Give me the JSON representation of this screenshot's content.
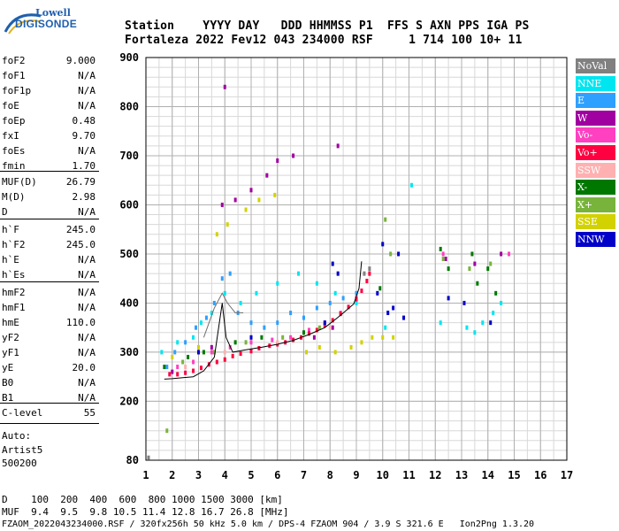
{
  "logo": {
    "line1": "Lowell",
    "line2": "DIGISONDE"
  },
  "header": {
    "line1": "Station    YYYY DAY   DDD HHMMSS P1  FFS S AXN PPS IGA PS",
    "line2": "Fortaleza 2022 Fev12 043 234000 RSF     1 714 100 10+ 11"
  },
  "params": [
    {
      "k": "foF2",
      "v": "9.000"
    },
    {
      "k": "foF1",
      "v": "N/A"
    },
    {
      "k": "foF1p",
      "v": "N/A"
    },
    {
      "k": "foE",
      "v": "N/A"
    },
    {
      "k": "foEp",
      "v": "0.48"
    },
    {
      "k": "fxI",
      "v": "9.70"
    },
    {
      "k": "foEs",
      "v": "N/A"
    },
    {
      "k": "fmin",
      "v": "1.70"
    },
    {
      "k": "MUF(D)",
      "v": "26.79"
    },
    {
      "k": "M(D)",
      "v": "2.98"
    },
    {
      "k": "D",
      "v": "N/A"
    },
    {
      "k": "h`F",
      "v": "245.0"
    },
    {
      "k": "h`F2",
      "v": "245.0"
    },
    {
      "k": "h`E",
      "v": "N/A"
    },
    {
      "k": "h`Es",
      "v": "N/A"
    },
    {
      "k": "hmF2",
      "v": "N/A"
    },
    {
      "k": "hmF1",
      "v": "N/A"
    },
    {
      "k": "hmE",
      "v": "110.0"
    },
    {
      "k": "yF2",
      "v": "N/A"
    },
    {
      "k": "yF1",
      "v": "N/A"
    },
    {
      "k": "yE",
      "v": "20.0"
    },
    {
      "k": "B0",
      "v": "N/A"
    },
    {
      "k": "B1",
      "v": "N/A"
    },
    {
      "k": "C-level",
      "v": "55"
    }
  ],
  "auto": {
    "line1": "Auto:",
    "line2": "Artist5",
    "line3": "500200"
  },
  "legend": [
    {
      "label": "NoVal",
      "color": "#808080"
    },
    {
      "label": "NNE",
      "color": "#00e6f0"
    },
    {
      "label": "E",
      "color": "#2ea0ff"
    },
    {
      "label": "W",
      "color": "#a000a0"
    },
    {
      "label": "Vo-",
      "color": "#ff40c0"
    },
    {
      "label": "Vo+",
      "color": "#ff0040"
    },
    {
      "label": "SSW",
      "color": "#ffb0b0"
    },
    {
      "label": "X-",
      "color": "#007800"
    },
    {
      "label": "X+",
      "color": "#78b43c"
    },
    {
      "label": "SSE",
      "color": "#d2d200"
    },
    {
      "label": "NNW",
      "color": "#0000c8"
    }
  ],
  "footer": {
    "line1": "D    100  200  400  600  800 1000 1500 3000 [km]",
    "line2": "MUF  9.4  9.5  9.8 10.5 11.4 12.8 16.7 26.8 [MHz]",
    "line3": "FZAOM_2022043234000.RSF / 320fx256h 50 kHz 5.0 km / DPS-4 FZAOM 904 / 3.9 S 321.6 E   Ion2Png 1.3.20"
  },
  "chart_data": {
    "type": "scatter",
    "xlim": [
      1,
      17
    ],
    "ylim": [
      80,
      900
    ],
    "x_ticks": [
      1,
      2,
      3,
      4,
      5,
      6,
      7,
      8,
      9,
      10,
      11,
      12,
      13,
      14,
      15,
      16,
      17
    ],
    "y_ticks": [
      80,
      200,
      300,
      400,
      500,
      600,
      700,
      800,
      900
    ],
    "grid": true,
    "series": [
      {
        "name": "NoVal",
        "color": "#808080",
        "points": [
          [
            1.1,
            85
          ],
          [
            9.3,
            460
          ],
          [
            9.5,
            470
          ]
        ]
      },
      {
        "name": "NNE",
        "color": "#00e6f0",
        "points": [
          [
            1.6,
            300
          ],
          [
            2.2,
            320
          ],
          [
            2.8,
            330
          ],
          [
            3.1,
            360
          ],
          [
            3.5,
            380
          ],
          [
            4.0,
            420
          ],
          [
            4.6,
            400
          ],
          [
            5.2,
            420
          ],
          [
            6.0,
            440
          ],
          [
            6.8,
            460
          ],
          [
            7.5,
            440
          ],
          [
            8.2,
            420
          ],
          [
            9.0,
            400
          ],
          [
            10.1,
            350
          ],
          [
            11.1,
            640
          ],
          [
            12.2,
            360
          ],
          [
            13.2,
            350
          ],
          [
            13.5,
            340
          ],
          [
            13.8,
            360
          ],
          [
            14.2,
            380
          ],
          [
            14.5,
            400
          ]
        ]
      },
      {
        "name": "E",
        "color": "#2ea0ff",
        "points": [
          [
            1.8,
            270
          ],
          [
            2.1,
            300
          ],
          [
            2.5,
            320
          ],
          [
            2.9,
            350
          ],
          [
            3.3,
            370
          ],
          [
            3.6,
            400
          ],
          [
            3.9,
            450
          ],
          [
            4.2,
            460
          ],
          [
            4.5,
            380
          ],
          [
            5.0,
            360
          ],
          [
            5.5,
            350
          ],
          [
            6.0,
            360
          ],
          [
            6.5,
            380
          ],
          [
            7.0,
            370
          ],
          [
            7.5,
            390
          ],
          [
            8.0,
            400
          ],
          [
            8.5,
            410
          ],
          [
            9.0,
            420
          ]
        ]
      },
      {
        "name": "W",
        "color": "#a000a0",
        "points": [
          [
            2.0,
            260
          ],
          [
            3.0,
            300
          ],
          [
            3.5,
            310
          ],
          [
            3.9,
            600
          ],
          [
            4.0,
            840
          ],
          [
            4.4,
            610
          ],
          [
            5.0,
            630
          ],
          [
            5.6,
            660
          ],
          [
            6.0,
            690
          ],
          [
            6.6,
            700
          ],
          [
            7.4,
            330
          ],
          [
            8.1,
            350
          ],
          [
            8.3,
            720
          ],
          [
            12.4,
            490
          ],
          [
            13.5,
            480
          ],
          [
            14.5,
            500
          ]
        ]
      },
      {
        "name": "Vo-",
        "color": "#ff40c0",
        "points": [
          [
            2.2,
            270
          ],
          [
            2.8,
            280
          ],
          [
            3.5,
            300
          ],
          [
            4.2,
            310
          ],
          [
            5.0,
            320
          ],
          [
            5.8,
            325
          ],
          [
            6.5,
            330
          ],
          [
            7.2,
            345
          ],
          [
            7.8,
            360
          ],
          [
            8.4,
            380
          ],
          [
            9.0,
            410
          ],
          [
            12.3,
            500
          ],
          [
            14.8,
            500
          ]
        ]
      },
      {
        "name": "Vo+",
        "color": "#ff0040",
        "points": [
          [
            1.9,
            255
          ],
          [
            2.2,
            255
          ],
          [
            2.5,
            258
          ],
          [
            2.8,
            262
          ],
          [
            3.1,
            268
          ],
          [
            3.4,
            275
          ],
          [
            3.7,
            280
          ],
          [
            4.0,
            285
          ],
          [
            4.3,
            292
          ],
          [
            4.6,
            297
          ],
          [
            5.0,
            302
          ],
          [
            5.3,
            308
          ],
          [
            5.7,
            313
          ],
          [
            6.0,
            316
          ],
          [
            6.3,
            320
          ],
          [
            6.6,
            325
          ],
          [
            6.9,
            330
          ],
          [
            7.2,
            338
          ],
          [
            7.5,
            345
          ],
          [
            7.8,
            355
          ],
          [
            8.1,
            365
          ],
          [
            8.4,
            378
          ],
          [
            8.7,
            392
          ],
          [
            9.0,
            408
          ],
          [
            9.2,
            425
          ],
          [
            9.4,
            445
          ],
          [
            9.5,
            460
          ]
        ]
      },
      {
        "name": "SSW",
        "color": "#ffb0b0",
        "points": [
          [
            2.5,
            270
          ],
          [
            4.0,
            300
          ],
          [
            6.0,
            320
          ],
          [
            8.0,
            350
          ]
        ]
      },
      {
        "name": "X-",
        "color": "#007800",
        "points": [
          [
            1.7,
            270
          ],
          [
            2.6,
            290
          ],
          [
            3.2,
            300
          ],
          [
            4.4,
            320
          ],
          [
            5.4,
            330
          ],
          [
            7.0,
            340
          ],
          [
            9.9,
            430
          ],
          [
            12.2,
            510
          ],
          [
            12.5,
            470
          ],
          [
            13.4,
            500
          ],
          [
            13.6,
            440
          ],
          [
            14.0,
            470
          ],
          [
            14.3,
            420
          ]
        ]
      },
      {
        "name": "X+",
        "color": "#78b43c",
        "points": [
          [
            1.8,
            140
          ],
          [
            2.4,
            280
          ],
          [
            3.6,
            300
          ],
          [
            4.8,
            320
          ],
          [
            6.2,
            330
          ],
          [
            7.6,
            350
          ],
          [
            10.1,
            570
          ],
          [
            10.3,
            500
          ],
          [
            12.3,
            490
          ],
          [
            13.3,
            470
          ],
          [
            14.1,
            480
          ]
        ]
      },
      {
        "name": "SSE",
        "color": "#d2d200",
        "points": [
          [
            2.0,
            290
          ],
          [
            3.0,
            310
          ],
          [
            3.7,
            540
          ],
          [
            4.1,
            560
          ],
          [
            4.8,
            590
          ],
          [
            5.3,
            610
          ],
          [
            5.9,
            620
          ],
          [
            7.1,
            300
          ],
          [
            7.6,
            310
          ],
          [
            8.2,
            300
          ],
          [
            8.8,
            310
          ],
          [
            9.2,
            320
          ],
          [
            9.6,
            330
          ],
          [
            10.0,
            330
          ],
          [
            10.4,
            330
          ]
        ]
      },
      {
        "name": "NNW",
        "color": "#0000c8",
        "points": [
          [
            3.0,
            300
          ],
          [
            5.0,
            330
          ],
          [
            7.8,
            360
          ],
          [
            8.1,
            480
          ],
          [
            8.3,
            460
          ],
          [
            9.8,
            420
          ],
          [
            10.0,
            520
          ],
          [
            10.2,
            380
          ],
          [
            10.4,
            390
          ],
          [
            10.6,
            500
          ],
          [
            10.8,
            370
          ],
          [
            12.5,
            410
          ],
          [
            13.1,
            400
          ],
          [
            14.1,
            360
          ]
        ]
      }
    ],
    "traces": [
      {
        "name": "black",
        "color": "#000000",
        "points": [
          [
            1.7,
            245
          ],
          [
            2.0,
            246
          ],
          [
            2.4,
            248
          ],
          [
            2.8,
            250
          ],
          [
            3.2,
            262
          ],
          [
            3.6,
            290
          ],
          [
            3.9,
            400
          ],
          [
            4.05,
            330
          ],
          [
            4.3,
            300
          ],
          [
            4.8,
            305
          ],
          [
            5.4,
            310
          ],
          [
            6.0,
            316
          ],
          [
            6.6,
            324
          ],
          [
            7.2,
            336
          ],
          [
            7.8,
            350
          ],
          [
            8.4,
            375
          ],
          [
            8.9,
            398
          ],
          [
            9.1,
            430
          ],
          [
            9.2,
            485
          ]
        ]
      },
      {
        "name": "gray",
        "color": "#707070",
        "points": [
          [
            3.2,
            330
          ],
          [
            3.6,
            390
          ],
          [
            3.9,
            420
          ],
          [
            4.1,
            400
          ],
          [
            4.4,
            380
          ],
          [
            4.7,
            380
          ]
        ]
      }
    ]
  }
}
